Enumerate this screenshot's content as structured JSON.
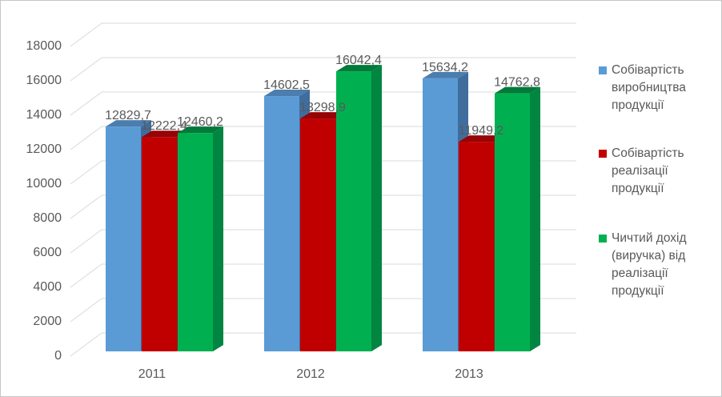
{
  "chart_data": {
    "type": "bar",
    "variant": "3d-clustered-column",
    "title": "",
    "xlabel": "",
    "ylabel": "",
    "categories": [
      "2011",
      "2012",
      "2013"
    ],
    "series": [
      {
        "name": "Собівартість виробництва продукції",
        "color": "#5B9BD5",
        "top_color": "#4B7EAF",
        "side_color": "#3F6D9E",
        "values": [
          12829.7,
          14602.5,
          15634.2
        ],
        "value_labels": [
          "12829,7",
          "14602,5",
          "15634,2"
        ]
      },
      {
        "name": "Собівартість реалізації продукції",
        "color": "#C00000",
        "top_color": "#960406",
        "side_color": "#8D1A1B",
        "values": [
          12222.4,
          13298.9,
          11949.2
        ],
        "value_labels": [
          "12222,4",
          "13298,9",
          "11949,2"
        ]
      },
      {
        "name": "Чичтий дохід (виручка) від реалізації продукції",
        "color": "#00B050",
        "top_color": "#027A3A",
        "side_color": "#018540",
        "values": [
          12460.2,
          16042.4,
          14762.8
        ],
        "value_labels": [
          "12460,2",
          "16042,4",
          "14762,8"
        ]
      }
    ],
    "y_ticks": [
      {
        "value": 18000,
        "label": "18000"
      },
      {
        "value": 16000,
        "label": "16000"
      },
      {
        "value": 14000,
        "label": "14000"
      },
      {
        "value": 12000,
        "label": "12000"
      },
      {
        "value": 10000,
        "label": "10000"
      },
      {
        "value": 8000,
        "label": "8000"
      },
      {
        "value": 6000,
        "label": "6000"
      },
      {
        "value": 4000,
        "label": "4000"
      },
      {
        "value": 2000,
        "label": "2000"
      },
      {
        "value": 0,
        "label": "0"
      }
    ],
    "ylim": [
      0,
      18000
    ],
    "grid": true,
    "gridline_color": "#D9D9D9",
    "text_color": "#595959",
    "legend_position": "right"
  }
}
